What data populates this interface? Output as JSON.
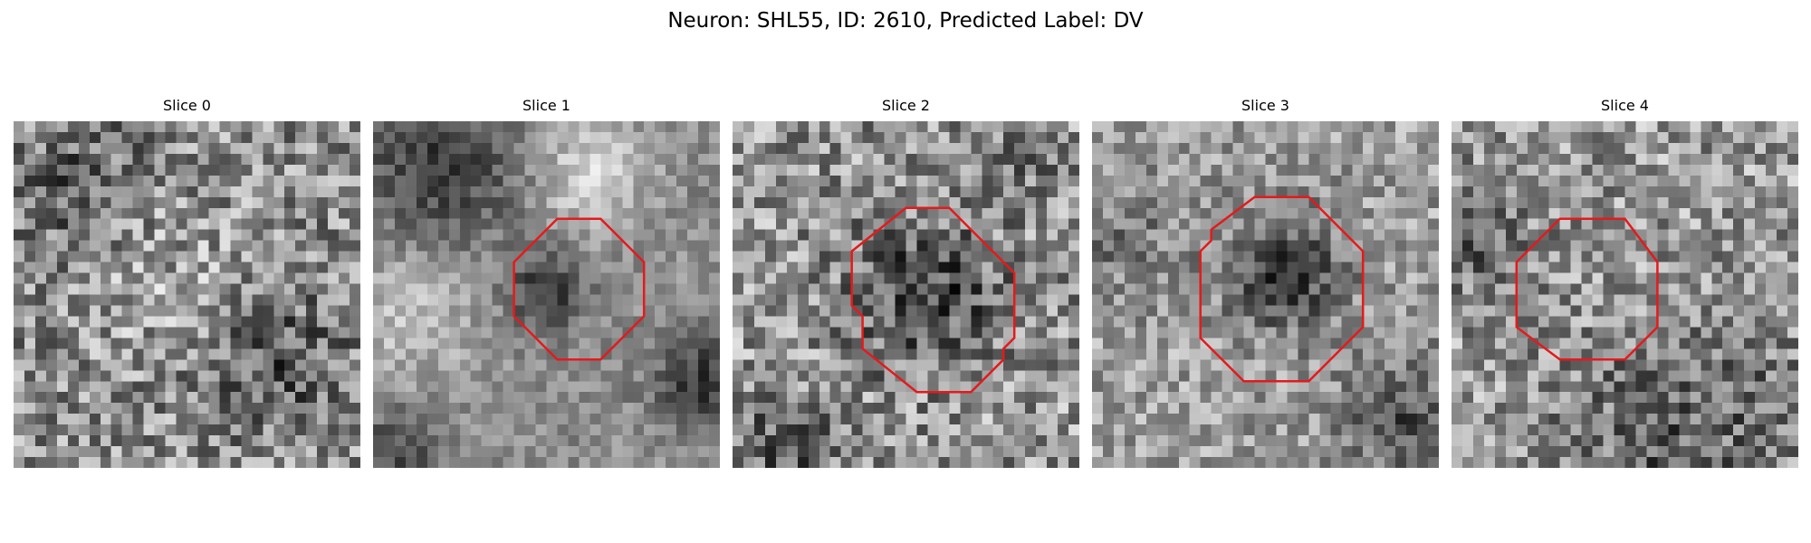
{
  "figure": {
    "title": "Neuron: SHL55, ID: 2610, Predicted Label: DV"
  },
  "panels": [
    {
      "title": "Slice 0"
    },
    {
      "title": "Slice 1"
    },
    {
      "title": "Slice 2"
    },
    {
      "title": "Slice 3"
    },
    {
      "title": "Slice 4"
    }
  ],
  "colors": {
    "roi_outline": "#e41a1c",
    "background": "#ffffff"
  }
}
